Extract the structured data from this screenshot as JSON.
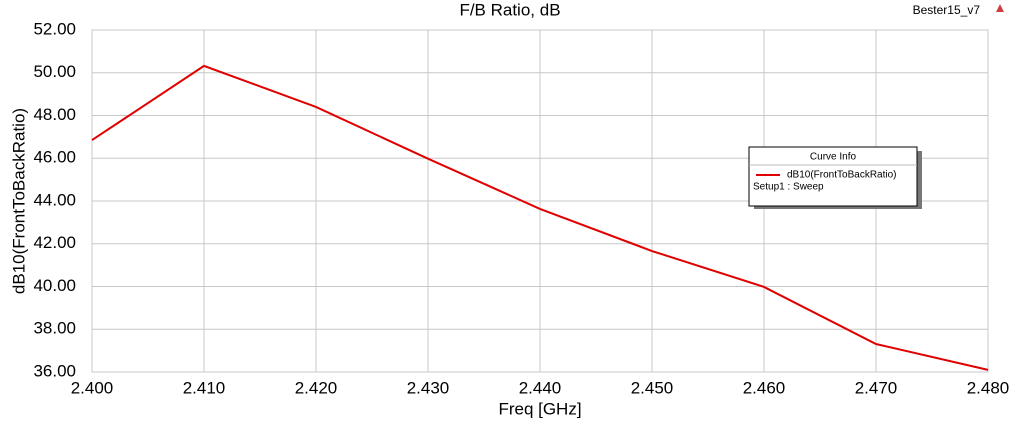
{
  "chart_data": {
    "type": "line",
    "title": "F/B Ratio, dB",
    "project": "Bester15_v7",
    "x_label": "Freq [GHz]",
    "y_label": "dB10(FrontToBackRatio)",
    "legend_title": "Curve Info",
    "legend_subtitle": "Setup1 : Sweep",
    "x": [
      2.4,
      2.41,
      2.42,
      2.43,
      2.44,
      2.45,
      2.46,
      2.47,
      2.48
    ],
    "series": [
      {
        "name": "dB10(FrontToBackRatio)",
        "color": "#e00000",
        "values": [
          46.85,
          50.32,
          48.4,
          45.98,
          43.63,
          41.66,
          39.98,
          37.31,
          36.1
        ]
      }
    ],
    "xlim": [
      2.4,
      2.48
    ],
    "xticks": [
      {
        "value": 2.4,
        "label": "2.400"
      },
      {
        "value": 2.41,
        "label": "2.410"
      },
      {
        "value": 2.42,
        "label": "2.420"
      },
      {
        "value": 2.43,
        "label": "2.430"
      },
      {
        "value": 2.44,
        "label": "2.440"
      },
      {
        "value": 2.45,
        "label": "2.450"
      },
      {
        "value": 2.46,
        "label": "2.460"
      },
      {
        "value": 2.47,
        "label": "2.470"
      },
      {
        "value": 2.48,
        "label": "2.480"
      }
    ],
    "ylim": [
      36,
      52
    ],
    "yticks": [
      {
        "value": 36,
        "label": "36.00"
      },
      {
        "value": 38,
        "label": "38.00"
      },
      {
        "value": 40,
        "label": "40.00"
      },
      {
        "value": 42,
        "label": "42.00"
      },
      {
        "value": 44,
        "label": "44.00"
      },
      {
        "value": 46,
        "label": "46.00"
      },
      {
        "value": 48,
        "label": "48.00"
      },
      {
        "value": 50,
        "label": "50.00"
      },
      {
        "value": 52,
        "label": "52.00"
      }
    ],
    "grid": true
  }
}
